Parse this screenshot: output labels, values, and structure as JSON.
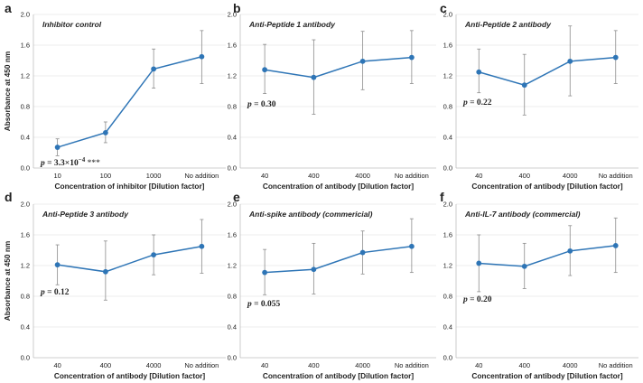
{
  "figure": {
    "y_axis_label": "Absorbance at 450 nm",
    "y_ticks": [
      "0.0",
      "0.4",
      "0.8",
      "1.2",
      "1.6",
      "2.0"
    ],
    "colors": {
      "series": "#2e75b6",
      "marker": "#2e75b6",
      "errorbar": "#8c8c8c",
      "grid": "#d9d9d9"
    }
  },
  "chart_data": [
    {
      "panel": "a",
      "type": "line",
      "title": "Inhibitor control",
      "categories": [
        "10",
        "100",
        "1000",
        "No addition"
      ],
      "values": [
        0.27,
        0.46,
        1.29,
        1.45
      ],
      "err_low": [
        0.16,
        0.33,
        1.04,
        1.1
      ],
      "err_high": [
        0.38,
        0.6,
        1.55,
        1.79
      ],
      "xlabel": "Concentration of inhibitor [Dilution factor]",
      "ylabel": "Absorbance at 450 nm",
      "ylim": [
        0,
        2.0
      ],
      "annotation": {
        "p_label": "p",
        "equals": "=",
        "value": "3.3×10",
        "exponent": "−4",
        "stars": "***"
      }
    },
    {
      "panel": "b",
      "type": "line",
      "title": "Anti-Peptide 1 antibody",
      "categories": [
        "40",
        "400",
        "4000",
        "No addition"
      ],
      "values": [
        1.28,
        1.18,
        1.39,
        1.44
      ],
      "err_low": [
        0.97,
        0.7,
        1.02,
        1.1
      ],
      "err_high": [
        1.61,
        1.67,
        1.78,
        1.79
      ],
      "xlabel": "Concentration of antibody [Dilution factor]",
      "ylabel": "",
      "ylim": [
        0,
        2.0
      ],
      "annotation": {
        "p_label": "p",
        "equals": "=",
        "value": "0.30"
      }
    },
    {
      "panel": "c",
      "type": "line",
      "title": "Anti-Peptide 2 antibody",
      "categories": [
        "40",
        "400",
        "4000",
        "No addition"
      ],
      "values": [
        1.25,
        1.08,
        1.39,
        1.44
      ],
      "err_low": [
        0.98,
        0.69,
        0.94,
        1.1
      ],
      "err_high": [
        1.55,
        1.48,
        1.85,
        1.79
      ],
      "xlabel": "Concentration of antibody [Dilution factor]",
      "ylabel": "",
      "ylim": [
        0,
        2.0
      ],
      "annotation": {
        "p_label": "p",
        "equals": "=",
        "value": "0.22"
      }
    },
    {
      "panel": "d",
      "type": "line",
      "title": "Anti-Peptide 3 antibody",
      "categories": [
        "40",
        "400",
        "4000",
        "No addition"
      ],
      "values": [
        1.21,
        1.12,
        1.34,
        1.45
      ],
      "err_low": [
        0.95,
        0.75,
        1.08,
        1.1
      ],
      "err_high": [
        1.47,
        1.52,
        1.6,
        1.8
      ],
      "xlabel": "Concentration of antibody [Dilution factor]",
      "ylabel": "Absorbance at 450 nm",
      "ylim": [
        0,
        2.0
      ],
      "annotation": {
        "p_label": "p",
        "equals": "=",
        "value": "0.12"
      }
    },
    {
      "panel": "e",
      "type": "line",
      "title": "Anti-spike antibody (commericial)",
      "categories": [
        "40",
        "400",
        "4000",
        "No addition"
      ],
      "values": [
        1.11,
        1.15,
        1.37,
        1.45
      ],
      "err_low": [
        0.82,
        0.83,
        1.09,
        1.11
      ],
      "err_high": [
        1.41,
        1.49,
        1.65,
        1.81
      ],
      "xlabel": "Concentration of antibody [Dilution factor]",
      "ylabel": "",
      "ylim": [
        0,
        2.0
      ],
      "annotation": {
        "p_label": "p",
        "equals": "=",
        "value": "0.055"
      }
    },
    {
      "panel": "f",
      "type": "line",
      "title": "Anti-IL-7 antibody (commercial)",
      "categories": [
        "40",
        "400",
        "4000",
        "No addition"
      ],
      "values": [
        1.23,
        1.19,
        1.39,
        1.46
      ],
      "err_low": [
        0.86,
        0.9,
        1.07,
        1.11
      ],
      "err_high": [
        1.6,
        1.49,
        1.72,
        1.82
      ],
      "xlabel": "Concentration of antibody [Dilution factor]",
      "ylabel": "",
      "ylim": [
        0,
        2.0
      ],
      "annotation": {
        "p_label": "p",
        "equals": "=",
        "value": "0.20"
      }
    }
  ]
}
